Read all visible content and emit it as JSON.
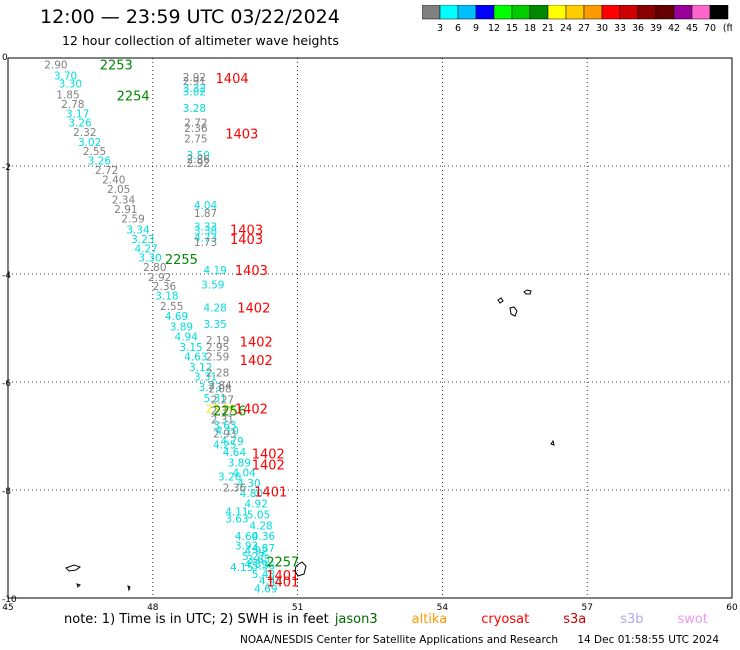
{
  "title": "12:00 — 23:59 UTC 03/22/2024",
  "subtitle": "12 hour collection of altimeter wave heights",
  "colorbar": {
    "colors": [
      "#808080",
      "#00ffff",
      "#00bfff",
      "#0000ff",
      "#00ff00",
      "#00cc00",
      "#008800",
      "#ffff00",
      "#ffcc00",
      "#ff9900",
      "#ff0000",
      "#cc0000",
      "#880000",
      "#660000",
      "#990099",
      "#ff66cc",
      "#000000"
    ],
    "labels": [
      "3",
      "6",
      "9",
      "12",
      "15",
      "18",
      "21",
      "24",
      "27",
      "30",
      "33",
      "36",
      "39",
      "42",
      "45",
      "70"
    ],
    "unit": "(ft)"
  },
  "note": {
    "text": "note:  1) Time is in UTC; 2) SWH is in feet",
    "legend": [
      {
        "name": "jason3",
        "color": "#006600"
      },
      {
        "name": "altika",
        "color": "#ff9900"
      },
      {
        "name": "cryosat",
        "color": "#ff0000"
      },
      {
        "name": "s3a",
        "color": "#cc0000"
      },
      {
        "name": "s3b",
        "color": "#aaaaee"
      },
      {
        "name": "swot",
        "color": "#ee99ee"
      }
    ]
  },
  "footer": {
    "credit": "NOAA/NESDIS Center for Satellite Applications and Research",
    "timestamp": "14 Dec 01:58:55 UTC 2024"
  },
  "chart_data": {
    "type": "scatter",
    "xlim": [
      45,
      60
    ],
    "ylim": [
      -10,
      0
    ],
    "x_ticks": [
      45,
      48,
      51,
      54,
      57,
      60
    ],
    "y_ticks": [
      0,
      -2,
      -4,
      -6,
      -8,
      -10
    ],
    "grid": "dotted",
    "labels": [
      {
        "x": 45.75,
        "y": -0.05,
        "t": "2.90",
        "c": "#808080"
      },
      {
        "x": 45.95,
        "y": -0.25,
        "t": "3.70",
        "c": "#00dddd"
      },
      {
        "x": 46.05,
        "y": -0.4,
        "t": "3.30",
        "c": "#00dddd"
      },
      {
        "x": 46.0,
        "y": -0.6,
        "t": "1.85",
        "c": "#808080"
      },
      {
        "x": 46.1,
        "y": -0.78,
        "t": "2.78",
        "c": "#808080"
      },
      {
        "x": 46.2,
        "y": -0.95,
        "t": "3.17",
        "c": "#00dddd"
      },
      {
        "x": 46.25,
        "y": -1.12,
        "t": "3.26",
        "c": "#00dddd"
      },
      {
        "x": 46.35,
        "y": -1.3,
        "t": "2.32",
        "c": "#808080"
      },
      {
        "x": 46.45,
        "y": -1.48,
        "t": "3.02",
        "c": "#00dddd"
      },
      {
        "x": 46.55,
        "y": -1.65,
        "t": "2.55",
        "c": "#808080"
      },
      {
        "x": 46.65,
        "y": -1.82,
        "t": "3.26",
        "c": "#00dddd"
      },
      {
        "x": 46.8,
        "y": -2.0,
        "t": "2.72",
        "c": "#808080"
      },
      {
        "x": 46.95,
        "y": -2.18,
        "t": "2.40",
        "c": "#808080"
      },
      {
        "x": 47.05,
        "y": -2.35,
        "t": "2.05",
        "c": "#808080"
      },
      {
        "x": 47.15,
        "y": -2.55,
        "t": "2.34",
        "c": "#808080"
      },
      {
        "x": 47.2,
        "y": -2.72,
        "t": "2.91",
        "c": "#808080"
      },
      {
        "x": 47.35,
        "y": -2.9,
        "t": "2.59",
        "c": "#808080"
      },
      {
        "x": 47.45,
        "y": -3.1,
        "t": "3.34",
        "c": "#00dddd"
      },
      {
        "x": 47.55,
        "y": -3.28,
        "t": "3.23",
        "c": "#00dddd"
      },
      {
        "x": 47.62,
        "y": -3.45,
        "t": "4.27",
        "c": "#00dddd"
      },
      {
        "x": 47.7,
        "y": -3.62,
        "t": "3.30",
        "c": "#00dddd"
      },
      {
        "x": 47.8,
        "y": -3.8,
        "t": "2.80",
        "c": "#808080"
      },
      {
        "x": 47.9,
        "y": -3.98,
        "t": "2.92",
        "c": "#808080"
      },
      {
        "x": 48.0,
        "y": -4.15,
        "t": "2.36",
        "c": "#808080"
      },
      {
        "x": 48.05,
        "y": -4.32,
        "t": "3.18",
        "c": "#00dddd"
      },
      {
        "x": 48.15,
        "y": -4.52,
        "t": "2.55",
        "c": "#808080"
      },
      {
        "x": 48.25,
        "y": -4.7,
        "t": "4.69",
        "c": "#00dddd"
      },
      {
        "x": 48.35,
        "y": -4.9,
        "t": "3.89",
        "c": "#00dddd"
      },
      {
        "x": 48.45,
        "y": -5.08,
        "t": "4.94",
        "c": "#00dddd"
      },
      {
        "x": 48.55,
        "y": -5.28,
        "t": "3.15",
        "c": "#00dddd"
      },
      {
        "x": 48.65,
        "y": -5.45,
        "t": "4.63",
        "c": "#00dddd"
      },
      {
        "x": 48.75,
        "y": -5.65,
        "t": "3.12",
        "c": "#00dddd"
      },
      {
        "x": 48.85,
        "y": -5.82,
        "t": "3.31",
        "c": "#00dddd"
      },
      {
        "x": 48.95,
        "y": -6.02,
        "t": "3.73",
        "c": "#00dddd"
      },
      {
        "x": 49.05,
        "y": -6.22,
        "t": "5.31",
        "c": "#00dddd"
      },
      {
        "x": 49.1,
        "y": -6.42,
        "t": "23.96",
        "c": "#eeee00"
      },
      {
        "x": 49.2,
        "y": -6.62,
        "t": "2.31",
        "c": "#808080"
      },
      {
        "x": 49.3,
        "y": -6.82,
        "t": "4.10",
        "c": "#00dddd"
      },
      {
        "x": 49.4,
        "y": -7.02,
        "t": "4.79",
        "c": "#00dddd"
      },
      {
        "x": 49.45,
        "y": -7.22,
        "t": "4.64",
        "c": "#00dddd"
      },
      {
        "x": 49.55,
        "y": -7.42,
        "t": "3.89",
        "c": "#00dddd"
      },
      {
        "x": 49.65,
        "y": -7.6,
        "t": "4.04",
        "c": "#00dddd"
      },
      {
        "x": 49.75,
        "y": -7.8,
        "t": "4.30",
        "c": "#00dddd"
      },
      {
        "x": 49.8,
        "y": -7.98,
        "t": "4.80",
        "c": "#00dddd"
      },
      {
        "x": 49.9,
        "y": -8.18,
        "t": "4.92",
        "c": "#00dddd"
      },
      {
        "x": 49.95,
        "y": -8.38,
        "t": "5.05",
        "c": "#00dddd"
      },
      {
        "x": 50.0,
        "y": -8.58,
        "t": "4.28",
        "c": "#00dddd"
      },
      {
        "x": 50.05,
        "y": -8.78,
        "t": "4.36",
        "c": "#00dddd"
      },
      {
        "x": 50.05,
        "y": -9.0,
        "t": "4.87",
        "c": "#00dddd"
      },
      {
        "x": 49.85,
        "y": -9.15,
        "t": "5.27",
        "c": "#00dddd"
      },
      {
        "x": 49.9,
        "y": -9.3,
        "t": "4.89",
        "c": "#00dddd"
      },
      {
        "x": 49.6,
        "y": -9.35,
        "t": "4.15",
        "c": "#00dddd"
      },
      {
        "x": 48.62,
        "y": -0.28,
        "t": "2.92",
        "c": "#808080"
      },
      {
        "x": 48.62,
        "y": -0.35,
        "t": "2.91",
        "c": "#808080"
      },
      {
        "x": 48.62,
        "y": -0.48,
        "t": "3.32",
        "c": "#00dddd"
      },
      {
        "x": 48.62,
        "y": -0.55,
        "t": "3.02",
        "c": "#00dddd"
      },
      {
        "x": 48.62,
        "y": -0.85,
        "t": "3.28",
        "c": "#00dddd"
      },
      {
        "x": 48.65,
        "y": -1.12,
        "t": "2.72",
        "c": "#808080"
      },
      {
        "x": 48.65,
        "y": -1.22,
        "t": "2.36",
        "c": "#808080"
      },
      {
        "x": 48.65,
        "y": -1.42,
        "t": "2.75",
        "c": "#808080"
      },
      {
        "x": 48.7,
        "y": -1.72,
        "t": "3.50",
        "c": "#00dddd"
      },
      {
        "x": 48.7,
        "y": -1.8,
        "t": "2.86",
        "c": "#808080"
      },
      {
        "x": 48.7,
        "y": -1.87,
        "t": "2.92",
        "c": "#808080"
      },
      {
        "x": 48.85,
        "y": -2.65,
        "t": "4.04",
        "c": "#00dddd"
      },
      {
        "x": 48.85,
        "y": -2.8,
        "t": "1.87",
        "c": "#808080"
      },
      {
        "x": 48.85,
        "y": -3.05,
        "t": "3.33",
        "c": "#00dddd"
      },
      {
        "x": 48.85,
        "y": -3.12,
        "t": "3.38",
        "c": "#00dddd"
      },
      {
        "x": 48.85,
        "y": -3.25,
        "t": "4.73",
        "c": "#00dddd"
      },
      {
        "x": 48.85,
        "y": -3.33,
        "t": "1.73",
        "c": "#808080"
      },
      {
        "x": 49.05,
        "y": -3.85,
        "t": "4.19",
        "c": "#00dddd"
      },
      {
        "x": 49.0,
        "y": -4.12,
        "t": "3.59",
        "c": "#00dddd"
      },
      {
        "x": 49.05,
        "y": -4.55,
        "t": "4.28",
        "c": "#00dddd"
      },
      {
        "x": 49.05,
        "y": -4.85,
        "t": "3.35",
        "c": "#00dddd"
      },
      {
        "x": 49.1,
        "y": -5.15,
        "t": "2.19",
        "c": "#808080"
      },
      {
        "x": 49.1,
        "y": -5.28,
        "t": "2.95",
        "c": "#808080"
      },
      {
        "x": 49.1,
        "y": -5.45,
        "t": "2.59",
        "c": "#808080"
      },
      {
        "x": 49.1,
        "y": -5.75,
        "t": "2.28",
        "c": "#808080"
      },
      {
        "x": 49.15,
        "y": -5.98,
        "t": "2.84",
        "c": "#808080"
      },
      {
        "x": 49.15,
        "y": -6.05,
        "t": "2.08",
        "c": "#808080"
      },
      {
        "x": 49.2,
        "y": -6.25,
        "t": "2.27",
        "c": "#808080"
      },
      {
        "x": 49.2,
        "y": -6.45,
        "t": "2.37",
        "c": "#808080"
      },
      {
        "x": 49.25,
        "y": -6.72,
        "t": "3.63",
        "c": "#00dddd"
      },
      {
        "x": 49.25,
        "y": -6.88,
        "t": "2.93",
        "c": "#808080"
      },
      {
        "x": 49.25,
        "y": -7.08,
        "t": "4.25",
        "c": "#00dddd"
      },
      {
        "x": 49.35,
        "y": -7.68,
        "t": "3.26",
        "c": "#00dddd"
      },
      {
        "x": 49.45,
        "y": -7.88,
        "t": "2.36",
        "c": "#808080"
      },
      {
        "x": 49.5,
        "y": -8.32,
        "t": "4.11",
        "c": "#00dddd"
      },
      {
        "x": 49.5,
        "y": -8.45,
        "t": "3.63",
        "c": "#00dddd"
      },
      {
        "x": 49.7,
        "y": -8.78,
        "t": "4.60",
        "c": "#00dddd"
      },
      {
        "x": 49.7,
        "y": -8.95,
        "t": "3.92",
        "c": "#00dddd"
      },
      {
        "x": 49.9,
        "y": -9.05,
        "t": "4.92",
        "c": "#00dddd"
      },
      {
        "x": 49.95,
        "y": -9.2,
        "t": "3.65",
        "c": "#00dddd"
      },
      {
        "x": 50.05,
        "y": -9.32,
        "t": "5.36",
        "c": "#00dddd"
      },
      {
        "x": 50.05,
        "y": -9.48,
        "t": "5.48",
        "c": "#00dddd"
      },
      {
        "x": 50.2,
        "y": -9.6,
        "t": "4.48",
        "c": "#00dddd"
      },
      {
        "x": 50.1,
        "y": -9.75,
        "t": "4.69",
        "c": "#00dddd"
      }
    ],
    "pass_labels": [
      {
        "x": 46.9,
        "y": -0.05,
        "t": "2253",
        "c": "#008800"
      },
      {
        "x": 47.25,
        "y": -0.62,
        "t": "2254",
        "c": "#008800"
      },
      {
        "x": 48.25,
        "y": -3.65,
        "t": "2255",
        "c": "#008800"
      },
      {
        "x": 49.25,
        "y": -6.45,
        "t": "2256",
        "c": "#008800"
      },
      {
        "x": 50.35,
        "y": -9.25,
        "t": "2257",
        "c": "#008800"
      },
      {
        "x": 49.3,
        "y": -0.3,
        "t": "1404",
        "c": "#ff0000"
      },
      {
        "x": 49.5,
        "y": -1.32,
        "t": "1403",
        "c": "#ff0000"
      },
      {
        "x": 49.6,
        "y": -3.1,
        "t": "1403",
        "c": "#ff0000"
      },
      {
        "x": 49.6,
        "y": -3.28,
        "t": "1403",
        "c": "#ff0000"
      },
      {
        "x": 49.7,
        "y": -3.85,
        "t": "1403",
        "c": "#ff0000"
      },
      {
        "x": 49.75,
        "y": -4.55,
        "t": "1402",
        "c": "#ff0000"
      },
      {
        "x": 49.8,
        "y": -5.18,
        "t": "1402",
        "c": "#ff0000"
      },
      {
        "x": 49.8,
        "y": -5.52,
        "t": "1402",
        "c": "#ff0000"
      },
      {
        "x": 49.7,
        "y": -6.42,
        "t": "1402",
        "c": "#ff0000"
      },
      {
        "x": 50.05,
        "y": -7.25,
        "t": "1402",
        "c": "#ff0000"
      },
      {
        "x": 50.05,
        "y": -7.45,
        "t": "1402",
        "c": "#ff0000"
      },
      {
        "x": 50.1,
        "y": -7.95,
        "t": "1401",
        "c": "#ff0000"
      },
      {
        "x": 50.35,
        "y": -9.5,
        "t": "1401",
        "c": "#ff0000"
      },
      {
        "x": 50.35,
        "y": -9.62,
        "t": "1401",
        "c": "#ff0000"
      }
    ]
  }
}
